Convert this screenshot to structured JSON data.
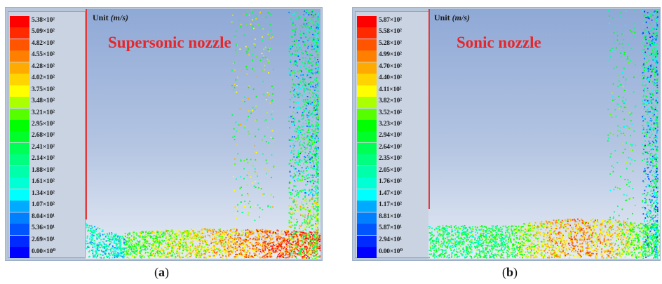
{
  "panels": [
    {
      "id": "a",
      "unit_label": "Unit",
      "unit_value": "(m/s)",
      "title": "Supersonic nozzle",
      "caption_letter": "a",
      "legend": [
        {
          "label": "5.38×10²",
          "color": "#ff0000"
        },
        {
          "label": "5.09×10²",
          "color": "#ff2a00"
        },
        {
          "label": "4.82×10²",
          "color": "#ff5500"
        },
        {
          "label": "4.55×10²",
          "color": "#ff7f00"
        },
        {
          "label": "4.28×10²",
          "color": "#ffaa00"
        },
        {
          "label": "4.02×10²",
          "color": "#ffd400"
        },
        {
          "label": "3.75×10²",
          "color": "#ffff00"
        },
        {
          "label": "3.48×10²",
          "color": "#aaff00"
        },
        {
          "label": "3.21×10²",
          "color": "#55ff00"
        },
        {
          "label": "2.95×10²",
          "color": "#00ff00"
        },
        {
          "label": "2.68×10²",
          "color": "#00ff2a"
        },
        {
          "label": "2.41×10²",
          "color": "#00ff55"
        },
        {
          "label": "2.14×10²",
          "color": "#00ff7f"
        },
        {
          "label": "1.88×10²",
          "color": "#00ffaa"
        },
        {
          "label": "1.61×10²",
          "color": "#00ffd4"
        },
        {
          "label": "1.34×10²",
          "color": "#00ffff"
        },
        {
          "label": "1.07×10²",
          "color": "#00aaff"
        },
        {
          "label": "8.04×10¹",
          "color": "#0080ff"
        },
        {
          "label": "5.36×10¹",
          "color": "#0055ff"
        },
        {
          "label": "2.69×10¹",
          "color": "#002aff"
        },
        {
          "label": "0.00×10⁰",
          "color": "#0000ff"
        }
      ]
    },
    {
      "id": "b",
      "unit_label": "Unit",
      "unit_value": "(m/s)",
      "title": "Sonic nozzle",
      "caption_letter": "b",
      "legend": [
        {
          "label": "5.87×10²",
          "color": "#ff0000"
        },
        {
          "label": "5.58×10²",
          "color": "#ff2a00"
        },
        {
          "label": "5.28×10²",
          "color": "#ff5500"
        },
        {
          "label": "4.99×10²",
          "color": "#ff7f00"
        },
        {
          "label": "4.70×10²",
          "color": "#ffaa00"
        },
        {
          "label": "4.40×10²",
          "color": "#ffd400"
        },
        {
          "label": "4.11×10²",
          "color": "#ffff00"
        },
        {
          "label": "3.82×10²",
          "color": "#aaff00"
        },
        {
          "label": "3.52×10²",
          "color": "#55ff00"
        },
        {
          "label": "3.23×10²",
          "color": "#00ff00"
        },
        {
          "label": "2.94×10²",
          "color": "#00ff2a"
        },
        {
          "label": "2.64×10²",
          "color": "#00ff55"
        },
        {
          "label": "2.35×10²",
          "color": "#00ff7f"
        },
        {
          "label": "2.05×10²",
          "color": "#00ffaa"
        },
        {
          "label": "1.76×10²",
          "color": "#00ffd4"
        },
        {
          "label": "1.47×10²",
          "color": "#00ffff"
        },
        {
          "label": "1.17×10²",
          "color": "#00aaff"
        },
        {
          "label": "8.81×10¹",
          "color": "#0080ff"
        },
        {
          "label": "5.87×10¹",
          "color": "#0055ff"
        },
        {
          "label": "2.94×10¹",
          "color": "#002aff"
        },
        {
          "label": "0.00×10⁰",
          "color": "#0000ff"
        }
      ]
    }
  ]
}
